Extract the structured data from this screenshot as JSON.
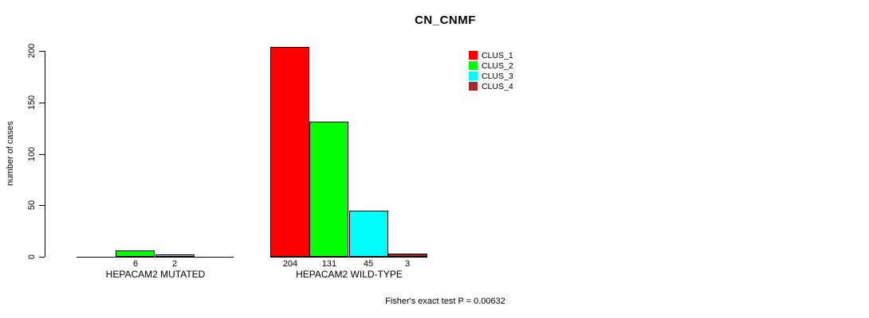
{
  "chart_data": {
    "type": "bar",
    "title": "CN_CNMF",
    "ylabel": "number of cases",
    "xlabel": "",
    "ylim": [
      0,
      200
    ],
    "yticks": [
      0,
      50,
      100,
      150,
      200
    ],
    "grid": false,
    "legend_position": "top-right",
    "categories": [
      "HEPACAM2 MUTATED",
      "HEPACAM2 WILD-TYPE"
    ],
    "series": [
      {
        "name": "CLUS_1",
        "color": "#ff0000",
        "values": [
          0,
          204
        ]
      },
      {
        "name": "CLUS_2",
        "color": "#00ff00",
        "values": [
          6,
          131
        ]
      },
      {
        "name": "CLUS_3",
        "color": "#00ffff",
        "values": [
          2,
          45
        ]
      },
      {
        "name": "CLUS_4",
        "color": "#a52a2a",
        "values": [
          0,
          3
        ]
      }
    ],
    "bar_value_labels": {
      "HEPACAM2 MUTATED": [
        "6",
        "2"
      ],
      "HEPACAM2 WILD-TYPE": [
        "204",
        "131",
        "45",
        "3"
      ]
    },
    "annotation": "Fisher's exact test P = 0.00632"
  }
}
